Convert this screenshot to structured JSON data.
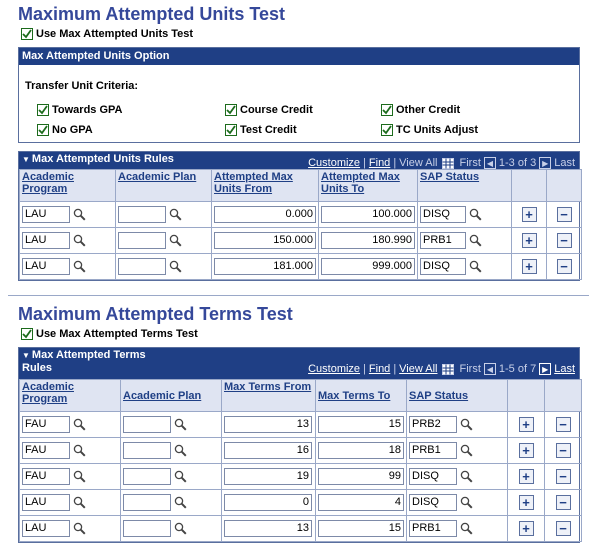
{
  "units_test": {
    "title": "Maximum Attempted Units Test",
    "use_checkbox_label": "Use Max Attempted Units Test",
    "option_box": {
      "header": "Max Attempted Units Option",
      "criteria_label": "Transfer Unit Criteria:",
      "checkboxes": [
        {
          "label": "Towards GPA",
          "checked": true
        },
        {
          "label": "Course Credit",
          "checked": true
        },
        {
          "label": "Other Credit",
          "checked": true
        },
        {
          "label": "No GPA",
          "checked": true
        },
        {
          "label": "Test Credit",
          "checked": true
        },
        {
          "label": "TC Units Adjust",
          "checked": true
        }
      ]
    },
    "grid": {
      "title": "Max Attempted Units Rules",
      "nav": {
        "customize": "Customize",
        "find": "Find",
        "view_all": "View All",
        "first": "First",
        "range": "1-3 of 3",
        "last": "Last"
      },
      "columns": [
        "Academic Program",
        "Academic Plan",
        "Attempted Max Units From",
        "Attempted Max Units To",
        "SAP Status"
      ],
      "rows": [
        {
          "program": "LAU",
          "plan": "",
          "from": "0.000",
          "to": "100.000",
          "status": "DISQ"
        },
        {
          "program": "LAU",
          "plan": "",
          "from": "150.000",
          "to": "180.990",
          "status": "PRB1"
        },
        {
          "program": "LAU",
          "plan": "",
          "from": "181.000",
          "to": "999.000",
          "status": "DISQ"
        }
      ]
    }
  },
  "terms_test": {
    "title": "Maximum Attempted Terms Test",
    "use_checkbox_label": "Use Max Attempted Terms Test",
    "grid": {
      "title_line1": "Max Attempted Terms",
      "title_line2": "Rules",
      "nav": {
        "customize": "Customize",
        "find": "Find",
        "view_all": "View All",
        "first": "First",
        "range": "1-5 of 7",
        "last": "Last"
      },
      "columns": [
        "Academic Program",
        "Academic Plan",
        "Max Terms From",
        "Max Terms To",
        "SAP Status"
      ],
      "rows": [
        {
          "program": "FAU",
          "plan": "",
          "from": "13",
          "to": "15",
          "status": "PRB2"
        },
        {
          "program": "FAU",
          "plan": "",
          "from": "16",
          "to": "18",
          "status": "PRB1"
        },
        {
          "program": "FAU",
          "plan": "",
          "from": "19",
          "to": "99",
          "status": "DISQ"
        },
        {
          "program": "LAU",
          "plan": "",
          "from": "0",
          "to": "4",
          "status": "DISQ"
        },
        {
          "program": "LAU",
          "plan": "",
          "from": "13",
          "to": "15",
          "status": "PRB1"
        }
      ]
    }
  },
  "icons": {
    "lookup": "magnifier-icon",
    "add_row": "+",
    "delete_row": "−",
    "prev": "◀",
    "next": "▶",
    "collapse": "▼"
  }
}
